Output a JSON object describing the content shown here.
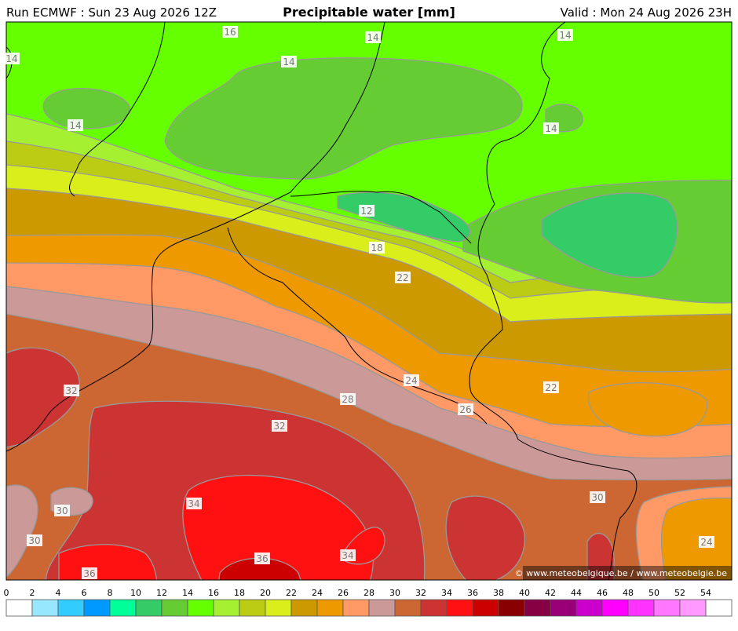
{
  "header": {
    "run": "Run ECMWF : Sun 23 Aug 2026 12Z",
    "title": "Precipitable water [mm]",
    "valid": "Valid : Mon 24 Aug 2026 23H"
  },
  "map": {
    "contour_labels": [
      16,
      14,
      14,
      14,
      14,
      14,
      14,
      12,
      18,
      22,
      24,
      22,
      32,
      28,
      26,
      32,
      30,
      34,
      30,
      30,
      36,
      34,
      24,
      36
    ],
    "copyright": "© www.meteobelgique.be / www.meteobelgie.be"
  },
  "colorbar": {
    "ticks": [
      0,
      2,
      4,
      6,
      8,
      10,
      12,
      14,
      16,
      18,
      20,
      22,
      24,
      26,
      28,
      30,
      32,
      34,
      36,
      38,
      40,
      42,
      44,
      46,
      48,
      50,
      52,
      54
    ],
    "colors": [
      "#ffffff",
      "#99e6ff",
      "#33ccff",
      "#0099ff",
      "#00ff99",
      "#33cc66",
      "#66cc33",
      "#66ff00",
      "#a6f032",
      "#bccc14",
      "#d9ee1a",
      "#cc9900",
      "#ee9900",
      "#ff9966",
      "#cc9999",
      "#cc6633",
      "#cc3333",
      "#ff1111",
      "#cc0000",
      "#880000",
      "#880044",
      "#990077",
      "#cc00cc",
      "#ff00ff",
      "#ff33ff",
      "#ff77ff",
      "#ff99ff",
      "#ffffff"
    ]
  }
}
